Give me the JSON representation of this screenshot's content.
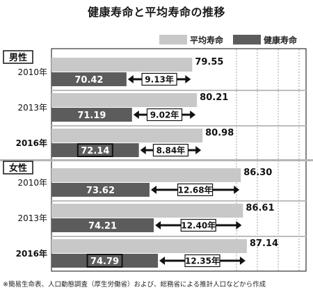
{
  "title": "健康寿命と平均寿命の推移",
  "footnote": "※簡易生命表、人口動態調査（厚生労働省）および、総務省による推計人口などから作成",
  "chart_data": {
    "type": "bar",
    "title": "健康寿命と平均寿命の推移",
    "unit_suffix": "年",
    "xlim": [
      60,
      90
    ],
    "legend_position": "top-right",
    "series": [
      {
        "name": "平均寿命",
        "color": "#c8c8c8"
      },
      {
        "name": "健康寿命",
        "color": "#5c5c5c"
      }
    ],
    "groups": [
      {
        "label": "男性",
        "rows": [
          {
            "year": "2010年",
            "bold": false,
            "average": 79.55,
            "healthy": 70.42,
            "gap": 9.13,
            "highlight": false
          },
          {
            "year": "2013年",
            "bold": false,
            "average": 80.21,
            "healthy": 71.19,
            "gap": 9.02,
            "highlight": false
          },
          {
            "year": "2016年",
            "bold": true,
            "average": 80.98,
            "healthy": 72.14,
            "gap": 8.84,
            "highlight": true
          }
        ]
      },
      {
        "label": "女性",
        "rows": [
          {
            "year": "2010年",
            "bold": false,
            "average": 86.3,
            "healthy": 73.62,
            "gap": 12.68,
            "highlight": false
          },
          {
            "year": "2013年",
            "bold": false,
            "average": 86.61,
            "healthy": 74.21,
            "gap": 12.4,
            "highlight": false
          },
          {
            "year": "2016年",
            "bold": true,
            "average": 87.14,
            "healthy": 74.79,
            "gap": 12.35,
            "highlight": true
          }
        ]
      }
    ]
  }
}
